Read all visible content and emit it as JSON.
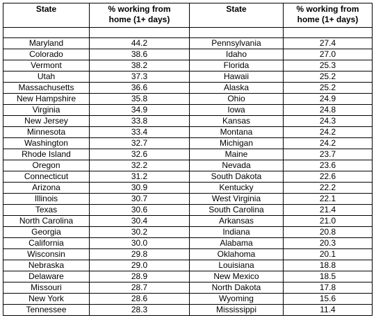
{
  "table": {
    "header": [
      "State",
      "% working from home (1+ days)",
      "State",
      "% working from home (1+ days)"
    ],
    "rows": [
      [
        "Maryland",
        "44.2",
        "Pennsylvania",
        "27.4"
      ],
      [
        "Colorado",
        "38.6",
        "Idaho",
        "27.0"
      ],
      [
        "Vermont",
        "38.2",
        "Florida",
        "25.3"
      ],
      [
        "Utah",
        "37.3",
        "Hawaii",
        "25.2"
      ],
      [
        "Massachusetts",
        "36.6",
        "Alaska",
        "25.2"
      ],
      [
        "New Hampshire",
        "35.8",
        "Ohio",
        "24.9"
      ],
      [
        "Virginia",
        "34.9",
        "Iowa",
        "24.8"
      ],
      [
        "New Jersey",
        "33.8",
        "Kansas",
        "24.3"
      ],
      [
        "Minnesota",
        "33.4",
        "Montana",
        "24.2"
      ],
      [
        "Washington",
        "32.7",
        "Michigan",
        "24.2"
      ],
      [
        "Rhode Island",
        "32.6",
        "Maine",
        "23.7"
      ],
      [
        "Oregon",
        "32.2",
        "Nevada",
        "23.6"
      ],
      [
        "Connecticut",
        "31.2",
        "South Dakota",
        "22.6"
      ],
      [
        "Arizona",
        "30.9",
        "Kentucky",
        "22.2"
      ],
      [
        "Illinois",
        "30.7",
        "West Virginia",
        "22.1"
      ],
      [
        "Texas",
        "30.6",
        "South Carolina",
        "21.4"
      ],
      [
        "North Carolina",
        "30.4",
        "Arkansas",
        "21.0"
      ],
      [
        "Georgia",
        "30.2",
        "Indiana",
        "20.8"
      ],
      [
        "California",
        "30.0",
        "Alabama",
        "20.3"
      ],
      [
        "Wisconsin",
        "29.8",
        "Oklahoma",
        "20.1"
      ],
      [
        "Nebraska",
        "29.0",
        "Louisiana",
        "18.8"
      ],
      [
        "Delaware",
        "28.9",
        "New Mexico",
        "18.5"
      ],
      [
        "Missouri",
        "28.7",
        "North Dakota",
        "17.8"
      ],
      [
        "New York",
        "28.6",
        "Wyoming",
        "15.6"
      ],
      [
        "Tennessee",
        "28.3",
        "Mississippi",
        "11.4"
      ]
    ]
  }
}
